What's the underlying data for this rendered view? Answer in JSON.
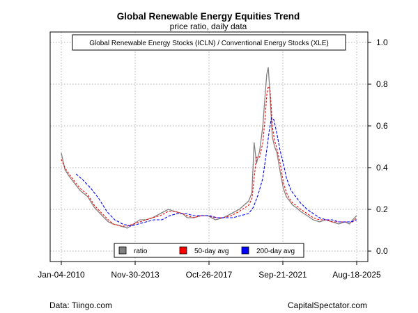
{
  "footer": {
    "source": "Data: Tiingo.com",
    "credit": "CapitalSpectator.com"
  },
  "chart_data": {
    "type": "line",
    "title": "Global Renewable Energy Equities Trend",
    "subtitle": "price ratio, daily data",
    "annotation": "Global Renewable Energy Stocks (ICLN) / Conventional Energy Stocks (XLE)",
    "x_tick_labels": [
      "Jan-04-2010",
      "Nov-30-2013",
      "Oct-26-2017",
      "Sep-21-2021",
      "Aug-18-2025"
    ],
    "x_range": [
      "2010-01-04",
      "2025-08-18"
    ],
    "ylim": [
      -0.05,
      1.05
    ],
    "y_ticks": [
      0.0,
      0.2,
      0.4,
      0.6,
      0.8,
      1.0
    ],
    "y_axis_side": "right",
    "grid": true,
    "legend": {
      "placement": "bottom-center",
      "entries": [
        {
          "label": "ratio",
          "color": "#808080"
        },
        {
          "label": "50-day avg",
          "color": "#ff0000"
        },
        {
          "label": "200-day avg",
          "color": "#0000ff"
        }
      ]
    },
    "series": [
      {
        "name": "ratio",
        "color": "#808080",
        "x": [
          "2010-01-04",
          "2010-03-15",
          "2010-06-01",
          "2010-09-01",
          "2011-01-03",
          "2011-06-01",
          "2011-10-03",
          "2012-03-01",
          "2012-07-02",
          "2012-10-01",
          "2013-03-01",
          "2013-07-01",
          "2013-11-01",
          "2014-03-03",
          "2014-07-01",
          "2014-11-03",
          "2015-04-01",
          "2015-09-01",
          "2016-01-04",
          "2016-06-01",
          "2016-09-01",
          "2017-01-03",
          "2017-06-01",
          "2017-10-02",
          "2018-03-01",
          "2018-08-01",
          "2019-01-02",
          "2019-06-03",
          "2019-12-02",
          "2020-02-03",
          "2020-03-16",
          "2020-05-01",
          "2020-07-01",
          "2020-09-01",
          "2020-10-15",
          "2020-11-16",
          "2020-12-15",
          "2021-01-15",
          "2021-02-08",
          "2021-03-01",
          "2021-04-15",
          "2021-06-01",
          "2021-08-02",
          "2021-10-01",
          "2021-12-01",
          "2022-02-01",
          "2022-04-01",
          "2022-06-01",
          "2022-09-01",
          "2023-01-03",
          "2023-05-01",
          "2023-09-01",
          "2024-01-02",
          "2024-05-01",
          "2024-09-03",
          "2025-01-02",
          "2025-04-01",
          "2025-06-02",
          "2025-08-18"
        ],
        "values": [
          0.47,
          0.39,
          0.36,
          0.33,
          0.29,
          0.26,
          0.21,
          0.17,
          0.14,
          0.13,
          0.12,
          0.11,
          0.13,
          0.15,
          0.15,
          0.16,
          0.18,
          0.2,
          0.19,
          0.18,
          0.16,
          0.16,
          0.17,
          0.17,
          0.15,
          0.16,
          0.18,
          0.2,
          0.24,
          0.28,
          0.52,
          0.42,
          0.48,
          0.6,
          0.75,
          0.85,
          0.88,
          0.76,
          0.65,
          0.55,
          0.5,
          0.47,
          0.38,
          0.3,
          0.26,
          0.24,
          0.22,
          0.21,
          0.19,
          0.17,
          0.15,
          0.14,
          0.15,
          0.14,
          0.13,
          0.14,
          0.13,
          0.15,
          0.17
        ]
      },
      {
        "name": "50-day avg",
        "color": "#ff0000",
        "x": [
          "2010-01-04",
          "2010-03-15",
          "2010-06-01",
          "2010-09-01",
          "2011-01-03",
          "2011-06-01",
          "2011-10-03",
          "2012-03-01",
          "2012-07-02",
          "2012-10-01",
          "2013-03-01",
          "2013-07-01",
          "2013-11-01",
          "2014-03-03",
          "2014-07-01",
          "2014-11-03",
          "2015-04-01",
          "2015-09-01",
          "2016-01-04",
          "2016-06-01",
          "2016-09-01",
          "2017-01-03",
          "2017-06-01",
          "2017-10-02",
          "2018-03-01",
          "2018-08-01",
          "2019-01-02",
          "2019-06-03",
          "2019-12-02",
          "2020-02-03",
          "2020-03-16",
          "2020-05-01",
          "2020-07-01",
          "2020-09-01",
          "2020-10-15",
          "2020-11-16",
          "2020-12-15",
          "2021-01-15",
          "2021-02-08",
          "2021-03-01",
          "2021-04-15",
          "2021-06-01",
          "2021-08-02",
          "2021-10-01",
          "2021-12-01",
          "2022-02-01",
          "2022-04-01",
          "2022-06-01",
          "2022-09-01",
          "2023-01-03",
          "2023-05-01",
          "2023-09-01",
          "2024-01-02",
          "2024-05-01",
          "2024-09-03",
          "2025-01-02",
          "2025-04-01",
          "2025-06-02",
          "2025-08-18"
        ],
        "values": [
          0.44,
          0.4,
          0.37,
          0.34,
          0.3,
          0.27,
          0.22,
          0.18,
          0.15,
          0.13,
          0.12,
          0.12,
          0.13,
          0.14,
          0.15,
          0.16,
          0.17,
          0.19,
          0.19,
          0.18,
          0.17,
          0.16,
          0.17,
          0.17,
          0.16,
          0.16,
          0.17,
          0.19,
          0.22,
          0.25,
          0.35,
          0.45,
          0.45,
          0.52,
          0.64,
          0.75,
          0.79,
          0.78,
          0.7,
          0.6,
          0.53,
          0.49,
          0.42,
          0.33,
          0.28,
          0.25,
          0.23,
          0.22,
          0.2,
          0.18,
          0.16,
          0.15,
          0.15,
          0.14,
          0.14,
          0.14,
          0.14,
          0.14,
          0.16
        ]
      },
      {
        "name": "200-day avg",
        "color": "#0000ff",
        "x": [
          "2010-10-15",
          "2011-03-01",
          "2011-08-01",
          "2012-01-03",
          "2012-06-01",
          "2012-11-01",
          "2013-04-01",
          "2013-09-03",
          "2014-02-03",
          "2014-07-01",
          "2014-12-01",
          "2015-05-01",
          "2015-10-01",
          "2016-03-01",
          "2016-08-01",
          "2017-01-03",
          "2017-06-01",
          "2017-11-01",
          "2018-04-02",
          "2018-09-04",
          "2019-02-01",
          "2019-07-01",
          "2019-12-02",
          "2020-03-02",
          "2020-06-01",
          "2020-09-01",
          "2020-11-02",
          "2021-01-04",
          "2021-02-15",
          "2021-04-01",
          "2021-06-01",
          "2021-08-02",
          "2021-10-01",
          "2021-12-01",
          "2022-03-01",
          "2022-06-01",
          "2022-09-01",
          "2023-01-03",
          "2023-05-01",
          "2023-09-01",
          "2024-01-02",
          "2024-05-01",
          "2024-09-03",
          "2025-01-02",
          "2025-05-01",
          "2025-08-18"
        ],
        "values": [
          0.37,
          0.34,
          0.3,
          0.25,
          0.19,
          0.15,
          0.13,
          0.12,
          0.13,
          0.14,
          0.15,
          0.15,
          0.17,
          0.18,
          0.18,
          0.17,
          0.17,
          0.17,
          0.16,
          0.16,
          0.16,
          0.17,
          0.18,
          0.21,
          0.27,
          0.35,
          0.46,
          0.58,
          0.64,
          0.63,
          0.56,
          0.48,
          0.42,
          0.35,
          0.29,
          0.26,
          0.23,
          0.2,
          0.18,
          0.16,
          0.15,
          0.15,
          0.14,
          0.14,
          0.14,
          0.15
        ]
      }
    ]
  }
}
